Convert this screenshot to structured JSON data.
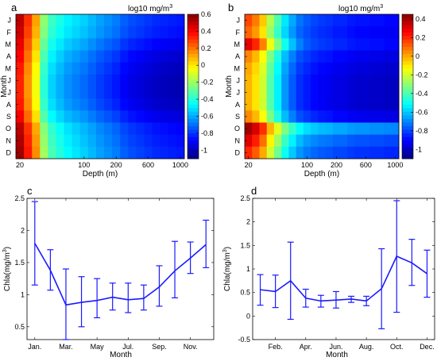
{
  "panels": {
    "a": {
      "label": "a",
      "cbar_title": "log10 mg/m"
    },
    "b": {
      "label": "b",
      "cbar_title": "log10 mg/m"
    },
    "c": {
      "label": "c"
    },
    "d": {
      "label": "d"
    }
  },
  "colors": {
    "line": "#1a1aff",
    "axis": "#000000"
  },
  "chart_data": [
    {
      "id": "a",
      "type": "heatmap",
      "title": "",
      "xlabel": "Depth (m)",
      "ylabel": "Month",
      "rows": [
        "J",
        "F",
        "M",
        "A",
        "M",
        "J",
        "J",
        "A",
        "S",
        "O",
        "N",
        "D"
      ],
      "x_tick_labels": [
        "20",
        "100",
        "200",
        "600",
        "1000"
      ],
      "x_tick_depths": [
        20,
        100,
        200,
        600,
        1000
      ],
      "column_depths": [
        20,
        30,
        40,
        50,
        60,
        70,
        80,
        90,
        100,
        125,
        150,
        175,
        200,
        300,
        400,
        500,
        600,
        700,
        800,
        900,
        1000
      ],
      "colorbar": {
        "title": "log10 mg/m",
        "title_sup": "3",
        "range": [
          -1.1,
          0.6
        ],
        "ticks": [
          0.6,
          0.4,
          0.2,
          0,
          -0.2,
          -0.4,
          -0.6,
          -0.8,
          -1
        ],
        "tick_labels": [
          "0.6",
          "0.4",
          "0.2",
          "0",
          "-0.2",
          "-0.4",
          "-0.6",
          "-0.8",
          "-1"
        ]
      },
      "base_profile": [
        0.45,
        0.25,
        0.05,
        -0.3,
        -0.45,
        -0.52,
        -0.58,
        -0.62,
        -0.66,
        -0.7,
        -0.74,
        -0.77,
        -0.8,
        -0.85,
        -0.88,
        -0.9,
        -0.92,
        -0.94,
        -0.95,
        -0.96,
        -0.97
      ],
      "month_offsets": [
        0.05,
        0.02,
        -0.02,
        -0.06,
        -0.1,
        -0.12,
        -0.12,
        -0.1,
        -0.05,
        0.05,
        0.08,
        0.1
      ],
      "deep_winter_offsets": [
        0.12,
        0.1,
        0.05,
        0,
        -0.03,
        -0.05,
        -0.05,
        -0.03,
        0.02,
        0.08,
        0.1,
        0.12
      ]
    },
    {
      "id": "b",
      "type": "heatmap",
      "title": "",
      "xlabel": "Depth (m)",
      "ylabel": "Month",
      "rows": [
        "J",
        "F",
        "M",
        "A",
        "M",
        "J",
        "J",
        "A",
        "S",
        "O",
        "N",
        "D"
      ],
      "x_tick_labels": [
        "20",
        "100",
        "200",
        "600",
        "1000"
      ],
      "x_tick_depths": [
        20,
        100,
        200,
        600,
        1000
      ],
      "column_depths": [
        20,
        30,
        40,
        50,
        60,
        70,
        80,
        90,
        100,
        125,
        150,
        175,
        200,
        300,
        400,
        500,
        600,
        700,
        800,
        900,
        1000
      ],
      "colorbar": {
        "title": "log10 mg/m",
        "title_sup": "3",
        "range": [
          -1.1,
          0.45
        ],
        "ticks": [
          0.4,
          0.2,
          0,
          -0.2,
          -0.4,
          -0.6,
          -0.8,
          -1
        ],
        "tick_labels": [
          "0.4",
          "0.2",
          "0",
          "-0.2",
          "-0.4",
          "-0.6",
          "-0.8",
          "-1"
        ]
      },
      "base_profile": [
        0.1,
        0.02,
        -0.1,
        -0.3,
        -0.45,
        -0.6,
        -0.7,
        -0.78,
        -0.82,
        -0.85,
        -0.87,
        -0.88,
        -0.9,
        -0.9,
        -0.92,
        -0.93,
        -0.93,
        -0.94,
        -0.94,
        -0.95,
        -0.95
      ],
      "month_offsets": [
        0.05,
        0.0,
        0.2,
        -0.05,
        -0.1,
        -0.12,
        -0.12,
        -0.12,
        -0.05,
        0.3,
        0.2,
        0.1
      ],
      "deep_winter_offsets": [
        0.05,
        0.03,
        0.05,
        0,
        -0.03,
        -0.05,
        -0.05,
        -0.05,
        0,
        0.25,
        0.15,
        0.1
      ]
    },
    {
      "id": "c",
      "type": "line",
      "title": "",
      "xlabel": "Month",
      "ylabel": "Chla(mg/m",
      "ylabel_sup": "3",
      "ylabel_close": ")",
      "x": [
        1,
        2,
        3,
        4,
        5,
        6,
        7,
        8,
        9,
        10,
        11,
        12
      ],
      "x_tick_positions": [
        1,
        3,
        5,
        7,
        9,
        11
      ],
      "x_tick_labels": [
        "Jan.",
        "Mar.",
        "May",
        "Jul.",
        "Sep.",
        "Nov."
      ],
      "ylim": [
        0.3,
        2.5
      ],
      "y_ticks": [
        0.5,
        1,
        1.5,
        2,
        2.5
      ],
      "y_tick_labels": [
        "0.5",
        "1",
        "1.5",
        "2",
        "2.5"
      ],
      "series": [
        {
          "values": [
            1.8,
            1.38,
            0.84,
            0.88,
            0.91,
            0.96,
            0.92,
            0.94,
            1.12,
            1.37,
            1.57,
            1.78
          ],
          "upper": [
            2.45,
            1.7,
            1.4,
            1.28,
            1.25,
            1.18,
            1.18,
            1.15,
            1.45,
            1.83,
            1.82,
            2.16
          ],
          "lower": [
            1.15,
            1.07,
            0.3,
            0.5,
            0.64,
            0.76,
            0.72,
            0.76,
            0.82,
            0.95,
            1.33,
            1.42
          ]
        }
      ]
    },
    {
      "id": "d",
      "type": "line",
      "title": "",
      "xlabel": "Month",
      "ylabel": "Chla(mg/m",
      "ylabel_sup": "3",
      "ylabel_close": ")",
      "x": [
        1,
        2,
        3,
        4,
        5,
        6,
        7,
        8,
        9,
        10,
        11,
        12
      ],
      "x_tick_positions": [
        2,
        4,
        6,
        8,
        10,
        12
      ],
      "x_tick_labels": [
        "Feb.",
        "Apr.",
        "Jun.",
        "Aug.",
        "Oct.",
        "Dec."
      ],
      "ylim": [
        -0.5,
        2.5
      ],
      "y_ticks": [
        -0.5,
        0,
        0.5,
        1,
        1.5,
        2,
        2.5
      ],
      "y_tick_labels": [
        "-0.5",
        "0",
        "0.5",
        "1",
        "1.5",
        "2",
        "2.5"
      ],
      "series": [
        {
          "values": [
            0.56,
            0.52,
            0.75,
            0.38,
            0.32,
            0.34,
            0.36,
            0.32,
            0.58,
            1.27,
            1.13,
            0.9
          ],
          "upper": [
            0.88,
            0.87,
            1.57,
            0.57,
            0.44,
            0.52,
            0.42,
            0.42,
            1.43,
            2.45,
            1.63,
            1.4
          ],
          "lower": [
            0.23,
            0.18,
            -0.07,
            0.19,
            0.19,
            0.17,
            0.29,
            0.22,
            -0.27,
            0.08,
            0.65,
            0.4
          ]
        }
      ]
    }
  ]
}
